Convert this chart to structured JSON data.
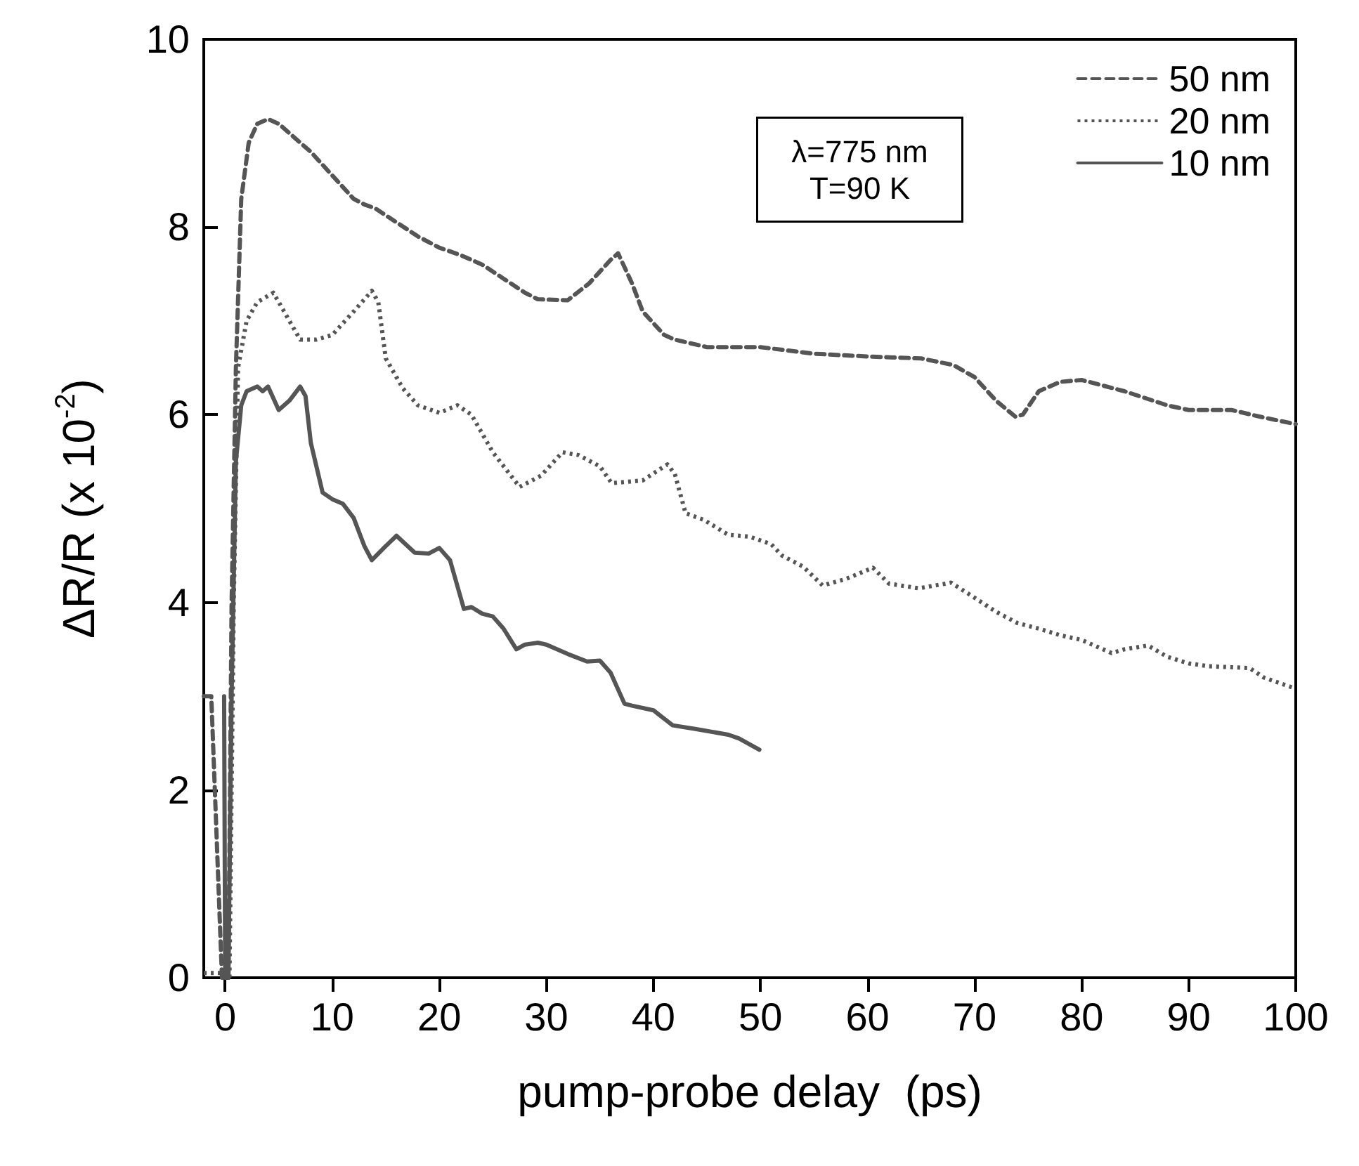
{
  "chart_data": {
    "type": "line",
    "xlabel": "pump-probe delay  (ps)",
    "ylabel": "ΔR/R (x 10$^{-2}$)",
    "xlim": [
      -2,
      100
    ],
    "xticks": [
      0,
      10,
      20,
      30,
      40,
      50,
      60,
      70,
      80,
      90,
      100
    ],
    "ylim": [
      0,
      10
    ],
    "yticks": [
      0,
      2,
      4,
      6,
      8,
      10
    ],
    "legend": "top right",
    "marker": "none",
    "annotations": [
      "λ=775 nm\nT=90 K"
    ],
    "series": [
      {
        "name": "50 nm",
        "color": "#555555",
        "line_style": "dashed",
        "x": [
          -2,
          -1.3,
          -0.8,
          -0.3,
          0.3,
          0.6,
          1,
          1.5,
          2.2,
          3,
          4,
          5,
          6,
          8,
          10,
          12,
          13,
          14,
          16,
          18,
          20,
          22,
          24,
          26,
          28,
          29.2,
          32,
          34,
          36,
          36.7,
          38,
          39,
          41,
          42,
          45,
          50,
          55,
          60,
          65,
          68,
          70,
          72,
          73.8,
          74.5,
          76,
          78,
          80,
          84,
          88,
          90,
          94,
          97,
          100
        ],
        "values": [
          3.0,
          3.0,
          1.5,
          0,
          0,
          4,
          6.5,
          8.3,
          8.9,
          9.1,
          9.15,
          9.1,
          9.0,
          8.8,
          8.55,
          8.3,
          8.24,
          8.2,
          8.05,
          7.9,
          7.78,
          7.7,
          7.6,
          7.45,
          7.3,
          7.23,
          7.22,
          7.4,
          7.65,
          7.72,
          7.4,
          7.1,
          6.85,
          6.8,
          6.72,
          6.72,
          6.65,
          6.62,
          6.6,
          6.53,
          6.4,
          6.15,
          5.98,
          6.0,
          6.25,
          6.35,
          6.37,
          6.25,
          6.1,
          6.05,
          6.05,
          5.97,
          5.9
        ]
      },
      {
        "name": "20 nm",
        "color": "#555555",
        "line_style": "dotted",
        "x": [
          -2,
          0,
          0.4,
          0.8,
          1.2,
          2,
          3,
          4.5,
          5,
          6,
          7,
          8.5,
          10,
          12,
          13.7,
          14.3,
          15,
          16.6,
          18,
          20,
          21.7,
          23,
          25,
          27.5,
          29.5,
          31.5,
          33,
          35,
          36.1,
          39,
          41.3,
          42,
          43,
          44.7,
          47,
          49,
          51,
          52,
          54,
          55.8,
          58,
          60.5,
          62,
          64.8,
          67.8,
          70,
          72,
          74,
          76,
          78,
          80,
          82.8,
          84,
          86.2,
          88,
          90,
          91.8,
          95.7,
          97,
          100
        ],
        "values": [
          0.05,
          0.05,
          0,
          4,
          6.5,
          7.0,
          7.2,
          7.3,
          7.2,
          7.0,
          6.8,
          6.8,
          6.85,
          7.1,
          7.32,
          7.2,
          6.6,
          6.28,
          6.1,
          6.02,
          6.1,
          6.0,
          5.6,
          5.23,
          5.35,
          5.6,
          5.57,
          5.45,
          5.27,
          5.3,
          5.47,
          5.37,
          4.95,
          4.88,
          4.72,
          4.7,
          4.62,
          4.5,
          4.38,
          4.18,
          4.25,
          4.37,
          4.2,
          4.15,
          4.21,
          4.05,
          3.9,
          3.78,
          3.72,
          3.65,
          3.6,
          3.46,
          3.5,
          3.54,
          3.42,
          3.35,
          3.32,
          3.3,
          3.2,
          3.08
        ]
      },
      {
        "name": "10 nm",
        "color": "#555555",
        "line_style": "solid",
        "x": [
          -0.1,
          0,
          0.3,
          0.6,
          1,
          1.5,
          2,
          3,
          3.5,
          4,
          5,
          6,
          7,
          7.5,
          8,
          9.1,
          10,
          11,
          12,
          13,
          13.7,
          15,
          16,
          17.7,
          19,
          20,
          21,
          22.3,
          23,
          24,
          25,
          26,
          27.2,
          28,
          29.2,
          30,
          32,
          33.8,
          35,
          36,
          37.3,
          38,
          40,
          41.8,
          44,
          47,
          48,
          49.9
        ],
        "values": [
          3.0,
          0,
          0,
          3,
          5.5,
          6.1,
          6.25,
          6.3,
          6.25,
          6.3,
          6.05,
          6.15,
          6.3,
          6.2,
          5.7,
          5.17,
          5.1,
          5.05,
          4.9,
          4.6,
          4.45,
          4.6,
          4.71,
          4.53,
          4.52,
          4.58,
          4.45,
          3.93,
          3.95,
          3.88,
          3.85,
          3.72,
          3.5,
          3.55,
          3.57,
          3.55,
          3.45,
          3.37,
          3.38,
          3.25,
          2.92,
          2.9,
          2.85,
          2.69,
          2.65,
          2.59,
          2.55,
          2.43
        ]
      }
    ]
  }
}
